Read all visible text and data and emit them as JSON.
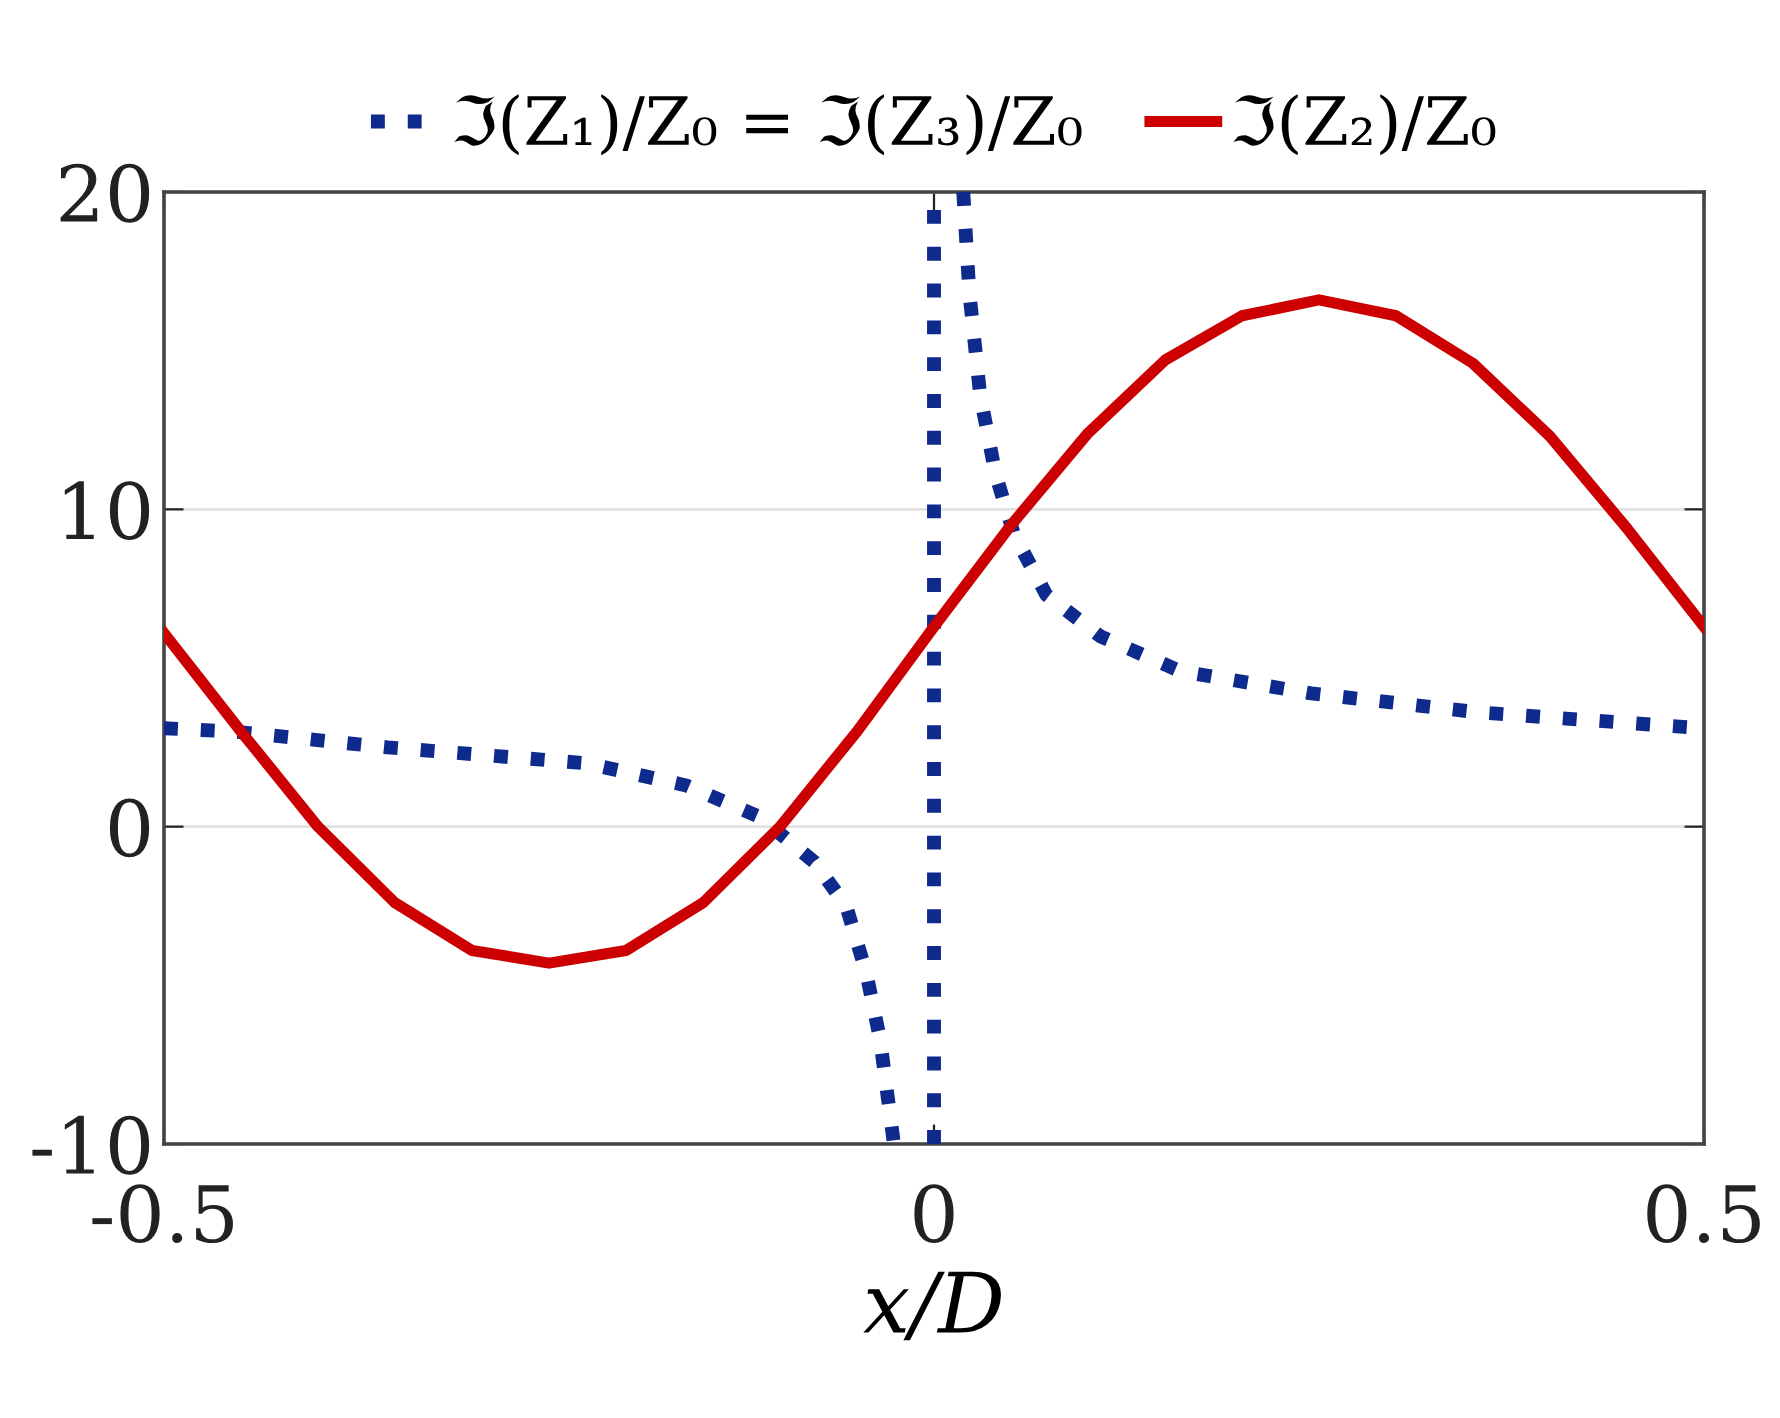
{
  "chart_data": {
    "type": "line",
    "xlabel": "x/D",
    "xlim": [
      -0.5,
      0.5
    ],
    "xticks": [
      -0.5,
      0,
      0.5
    ],
    "ylim": [
      -10,
      20
    ],
    "yticks": [
      -10,
      0,
      10,
      20
    ],
    "grid": "y",
    "legend": "top",
    "marker": "none",
    "series": [
      {
        "name": "ℑ(Z₁)/Z₀ = ℑ(Z₃)/Z₀",
        "color": "#0d2a8c",
        "line_style": "dotted",
        "x": [
          -0.5,
          -0.455,
          -0.355,
          -0.226,
          -0.161,
          -0.113,
          -0.078,
          -0.057,
          -0.044,
          -0.035,
          -0.026,
          null,
          0,
          0,
          null,
          0.019,
          0.023,
          0.03,
          0.04,
          0.052,
          0.073,
          0.108,
          0.16,
          0.245,
          0.354,
          0.5
        ],
        "values": [
          3.1,
          3.0,
          2.5,
          2.0,
          1.3,
          0.3,
          -1.1,
          -2.5,
          -4.6,
          -6.7,
          -10,
          null,
          -10,
          20,
          null,
          20,
          16.8,
          13.6,
          11.1,
          9.2,
          7.3,
          6.0,
          4.9,
          4.2,
          3.6,
          3.1
        ]
      },
      {
        "name": "ℑ(Z₂)/Z₀",
        "color": "#cc0000",
        "line_style": "solid",
        "x": [
          -0.5,
          -0.45,
          -0.4,
          -0.35,
          -0.3,
          -0.25,
          -0.2,
          -0.15,
          -0.1,
          -0.05,
          0,
          0.05,
          0.1,
          0.15,
          0.2,
          0.25,
          0.3,
          0.35,
          0.4,
          0.45,
          0.5
        ],
        "values": [
          6.1,
          3.0,
          0.0,
          -2.4,
          -3.9,
          -4.3,
          -3.9,
          -2.4,
          0.0,
          3.0,
          6.3,
          9.5,
          12.4,
          14.7,
          16.1,
          16.6,
          16.1,
          14.6,
          12.3,
          9.4,
          6.3
        ]
      }
    ]
  }
}
